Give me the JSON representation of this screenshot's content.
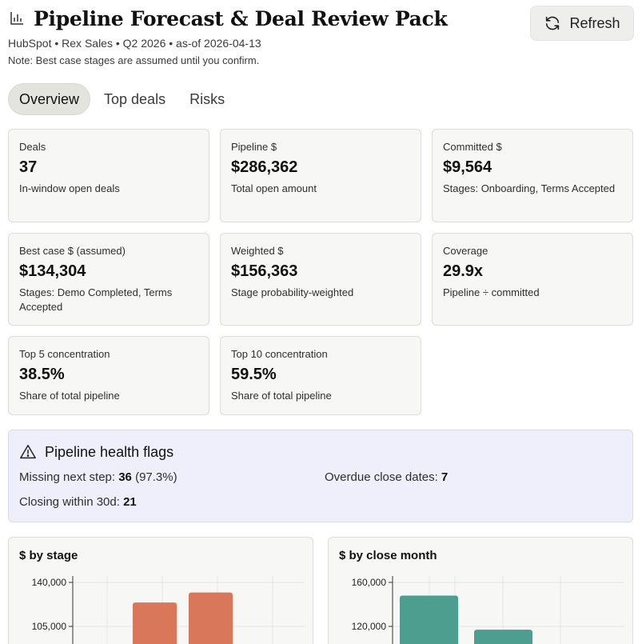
{
  "header": {
    "title": "Pipeline Forecast & Deal Review Pack",
    "subtitle": "HubSpot • Rex Sales • Q2 2026 • as-of 2026-04-13",
    "note": "Note: Best case stages are assumed until you confirm.",
    "refresh_label": "Refresh",
    "title_icon": "bar-chart-icon",
    "refresh_icon": "refresh-icon"
  },
  "tabs": [
    {
      "label": "Overview",
      "active": true
    },
    {
      "label": "Top deals",
      "active": false
    },
    {
      "label": "Risks",
      "active": false
    }
  ],
  "cards": [
    {
      "label": "Deals",
      "value": "37",
      "desc": "In-window open deals"
    },
    {
      "label": "Pipeline $",
      "value": "$286,362",
      "desc": "Total open amount"
    },
    {
      "label": "Committed $",
      "value": "$9,564",
      "desc": "Stages: Onboarding, Terms Accepted"
    },
    {
      "label": "Best case $ (assumed)",
      "value": "$134,304",
      "desc": "Stages: Demo Completed, Terms Accepted"
    },
    {
      "label": "Weighted $",
      "value": "$156,363",
      "desc": "Stage probability-weighted"
    },
    {
      "label": "Coverage",
      "value": "29.9x",
      "desc": "Pipeline ÷ committed"
    },
    {
      "label": "Top 5 concentration",
      "value": "38.5%",
      "desc": "Share of total pipeline"
    },
    {
      "label": "Top 10 concentration",
      "value": "59.5%",
      "desc": "Share of total pipeline"
    }
  ],
  "health": {
    "title": "Pipeline health flags",
    "icon": "warning-icon",
    "missing_label": "Missing next step: ",
    "missing_value": "36",
    "missing_pct": " (97.3%)",
    "overdue_label": "Overdue close dates: ",
    "overdue_value": "7",
    "closing_label": "Closing within 30d: ",
    "closing_value": "21"
  },
  "colors": {
    "stage_bar": "#d9775a",
    "month_bar": "#4e9e8f",
    "flags_bg": "#efeffc"
  },
  "chart_data": [
    {
      "type": "bar",
      "title": "$ by stage",
      "yticks": [
        "140,000",
        "105,000"
      ],
      "ytick_values": [
        140000,
        105000
      ],
      "ylim_visible": [
        94000,
        140000
      ],
      "values": [
        null,
        124000,
        132000,
        null
      ],
      "bar_slots": 4
    },
    {
      "type": "bar",
      "title": "$ by close month",
      "yticks": [
        "160,000",
        "120,000"
      ],
      "ytick_values": [
        160000,
        120000
      ],
      "ylim_visible": [
        110000,
        160000
      ],
      "values": [
        148000,
        117000,
        null,
        null
      ],
      "bar_slots": 4
    }
  ]
}
